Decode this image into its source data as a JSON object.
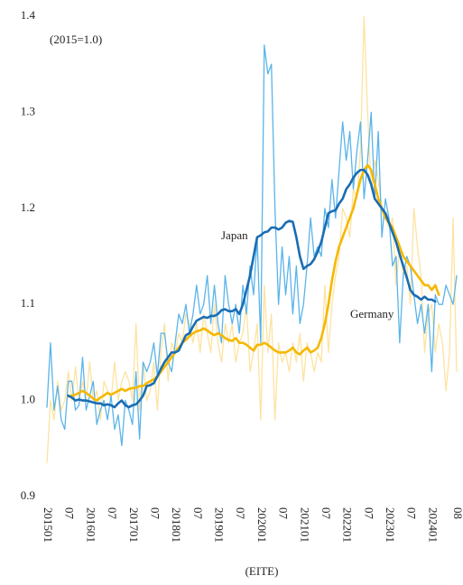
{
  "chart_data": {
    "type": "line",
    "subtitle": "(2015=1.0)",
    "x_label": "(EITE)",
    "categories": [
      "201501",
      null,
      null,
      null,
      null,
      null,
      "07",
      null,
      null,
      null,
      null,
      null,
      "201601",
      null,
      null,
      null,
      null,
      null,
      "07",
      null,
      null,
      null,
      null,
      null,
      "201701",
      null,
      null,
      null,
      null,
      null,
      "07",
      null,
      null,
      null,
      null,
      null,
      "201801",
      null,
      null,
      null,
      null,
      null,
      "07",
      null,
      null,
      null,
      null,
      null,
      "201901",
      null,
      null,
      null,
      null,
      null,
      "07",
      null,
      null,
      null,
      null,
      null,
      "202001",
      null,
      null,
      null,
      null,
      null,
      "07",
      null,
      null,
      null,
      null,
      null,
      "202101",
      null,
      null,
      null,
      null,
      null,
      "07",
      null,
      null,
      null,
      null,
      null,
      "202201",
      null,
      null,
      null,
      null,
      null,
      "07",
      null,
      null,
      null,
      null,
      null,
      "202301",
      null,
      null,
      null,
      null,
      null,
      "07",
      null,
      null,
      null,
      null,
      null,
      "202401",
      null,
      null,
      null,
      null,
      null,
      null,
      "08"
    ],
    "ylim": [
      0.9,
      1.4
    ],
    "yticks": [
      0.9,
      {
        "value": 1.0,
        "label": "1.0"
      },
      1.1,
      1.2,
      1.3,
      1.4
    ],
    "grid": false,
    "series": [
      {
        "color": "#5ab4ea",
        "values": [
          0.993,
          1.06,
          0.99,
          1.015,
          0.98,
          0.97,
          1.02,
          1.02,
          0.99,
          0.995,
          1.045,
          0.99,
          1.005,
          1.02,
          0.975,
          0.99,
          1.0,
          0.98,
          1.005,
          0.97,
          0.985,
          0.953,
          1.0,
          0.99,
          0.975,
          1.03,
          0.96,
          1.04,
          1.03,
          1.04,
          1.06,
          1.025,
          1.07,
          1.07,
          1.04,
          1.03,
          1.06,
          1.09,
          1.08,
          1.1,
          1.07,
          1.09,
          1.12,
          1.09,
          1.1,
          1.13,
          1.08,
          1.12,
          1.08,
          1.06,
          1.13,
          1.1,
          1.08,
          1.1,
          1.07,
          1.12,
          1.09,
          1.14,
          1.11,
          1.17,
          1.06,
          1.37,
          1.34,
          1.35,
          1.2,
          1.1,
          1.16,
          1.11,
          1.15,
          1.09,
          1.14,
          1.08,
          1.1,
          1.14,
          1.19,
          1.15,
          1.16,
          1.15,
          1.2,
          1.18,
          1.23,
          1.19,
          1.24,
          1.29,
          1.25,
          1.28,
          1.22,
          1.26,
          1.29,
          1.21,
          1.25,
          1.3,
          1.21,
          1.28,
          1.17,
          1.21,
          1.19,
          1.14,
          1.15,
          1.06,
          1.13,
          1.15,
          1.14,
          1.11,
          1.08,
          1.1,
          1.07,
          1.1,
          1.03,
          1.11,
          1.1,
          1.1,
          1.12,
          1.11,
          1.1,
          1.13
        ]
      },
      {
        "name": "Japan",
        "color": "#1a6db3",
        "values": [
          null,
          null,
          null,
          null,
          null,
          null,
          1.005,
          1.003,
          1.0,
          1.001,
          1.0,
          1.0,
          0.999,
          0.998,
          0.997,
          0.997,
          0.995,
          0.996,
          0.995,
          0.993,
          0.997,
          1.0,
          0.995,
          0.993,
          0.995,
          0.996,
          1.0,
          1.005,
          1.015,
          1.016,
          1.018,
          1.025,
          1.033,
          1.04,
          1.045,
          1.05,
          1.05,
          1.052,
          1.06,
          1.068,
          1.07,
          1.077,
          1.083,
          1.085,
          1.087,
          1.086,
          1.088,
          1.088,
          1.09,
          1.094,
          1.095,
          1.093,
          1.093,
          1.095,
          1.09,
          1.1,
          1.115,
          1.13,
          1.15,
          1.17,
          1.172,
          1.175,
          1.176,
          1.18,
          1.18,
          1.178,
          1.18,
          1.185,
          1.187,
          1.186,
          1.17,
          1.15,
          1.137,
          1.14,
          1.142,
          1.147,
          1.155,
          1.165,
          1.18,
          1.195,
          1.197,
          1.198,
          1.205,
          1.21,
          1.22,
          1.225,
          1.232,
          1.237,
          1.24,
          1.24,
          1.235,
          1.225,
          1.21,
          1.205,
          1.2,
          1.195,
          1.185,
          1.175,
          1.165,
          1.152,
          1.14,
          1.128,
          1.115,
          1.11,
          1.108,
          1.105,
          1.108,
          1.105,
          1.105,
          1.103,
          null,
          null,
          null,
          null,
          null,
          null
        ]
      },
      {
        "color": "#fde3a0",
        "values": [
          0.935,
          1.0,
          0.98,
          1.02,
          0.99,
          1.0,
          1.03,
          1.0,
          1.035,
          1.0,
          1.02,
          1.0,
          1.04,
          1.0,
          1.01,
          0.98,
          1.02,
          1.01,
          1.0,
          1.04,
          1.0,
          1.02,
          1.03,
          1.02,
          1.0,
          1.08,
          0.99,
          1.04,
          1.0,
          1.01,
          1.04,
          0.99,
          1.05,
          1.08,
          1.02,
          1.06,
          1.05,
          1.07,
          1.06,
          1.09,
          1.08,
          1.06,
          1.08,
          1.05,
          1.09,
          1.07,
          1.05,
          1.1,
          1.06,
          1.04,
          1.08,
          1.06,
          1.08,
          1.04,
          1.06,
          1.07,
          1.1,
          1.03,
          1.05,
          1.08,
          0.98,
          1.12,
          1.05,
          1.09,
          0.98,
          1.06,
          1.04,
          1.05,
          1.03,
          1.06,
          1.04,
          1.07,
          1.02,
          1.06,
          1.05,
          1.03,
          1.05,
          1.04,
          1.12,
          1.05,
          1.1,
          1.13,
          1.15,
          1.2,
          1.19,
          1.17,
          1.22,
          1.21,
          1.26,
          1.4,
          1.3,
          1.22,
          1.25,
          1.23,
          1.2,
          1.19,
          1.18,
          1.19,
          1.12,
          1.16,
          1.13,
          1.14,
          1.1,
          1.2,
          1.16,
          1.13,
          1.05,
          1.09,
          1.1,
          1.05,
          1.08,
          1.06,
          1.01,
          1.05,
          1.19,
          1.03
        ]
      },
      {
        "name": "Germany",
        "color": "#f5b800",
        "values": [
          null,
          null,
          null,
          null,
          null,
          null,
          1.004,
          1.005,
          1.006,
          1.008,
          1.01,
          1.008,
          1.005,
          1.002,
          1.0,
          1.003,
          1.005,
          1.008,
          1.006,
          1.008,
          1.01,
          1.012,
          1.01,
          1.012,
          1.013,
          1.013,
          1.015,
          1.015,
          1.018,
          1.02,
          1.022,
          1.025,
          1.03,
          1.035,
          1.04,
          1.045,
          1.05,
          1.055,
          1.06,
          1.063,
          1.067,
          1.07,
          1.072,
          1.073,
          1.075,
          1.073,
          1.07,
          1.068,
          1.07,
          1.068,
          1.065,
          1.063,
          1.062,
          1.065,
          1.06,
          1.06,
          1.058,
          1.055,
          1.052,
          1.058,
          1.058,
          1.06,
          1.058,
          1.055,
          1.052,
          1.05,
          1.05,
          1.05,
          1.052,
          1.055,
          1.05,
          1.048,
          1.052,
          1.055,
          1.05,
          1.052,
          1.055,
          1.065,
          1.08,
          1.1,
          1.125,
          1.145,
          1.16,
          1.17,
          1.18,
          1.19,
          1.2,
          1.215,
          1.23,
          1.24,
          1.245,
          1.24,
          1.225,
          1.21,
          1.2,
          1.19,
          1.185,
          1.18,
          1.17,
          1.16,
          1.15,
          1.145,
          1.14,
          1.135,
          1.13,
          1.125,
          1.12,
          1.12,
          1.115,
          1.12,
          1.11,
          null,
          null,
          null,
          null,
          null
        ]
      }
    ]
  }
}
